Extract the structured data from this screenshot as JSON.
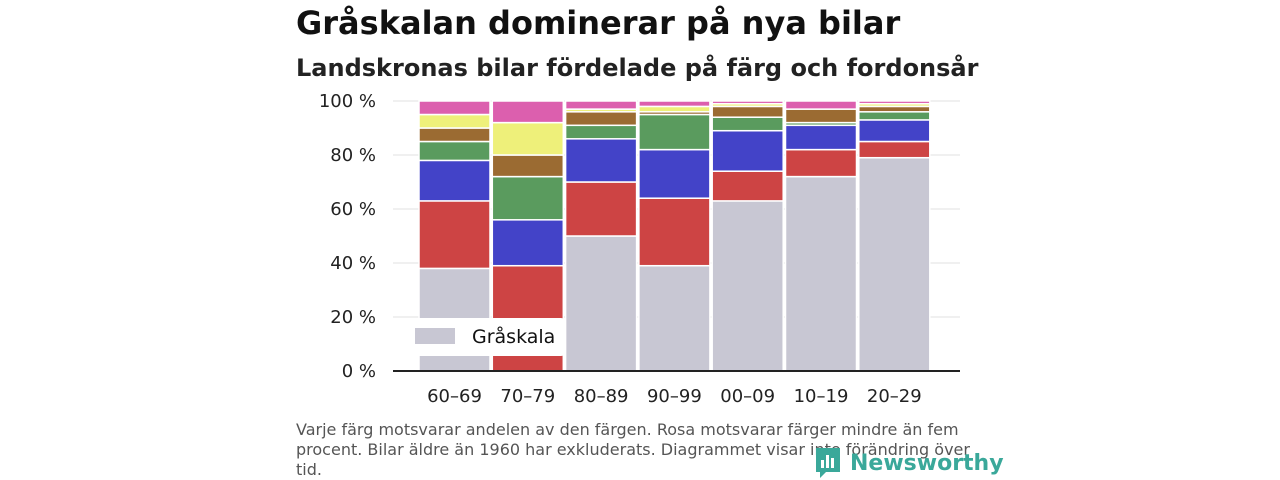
{
  "title": "Gråskalan dominerar på nya bilar",
  "subtitle": "Landskronas bilar fördelade på färg och fordonsår",
  "footnote": "Varje färg motsvarar andelen av den färgen. Rosa motsvarar färger mindre än fem procent. Bilar äldre än 1960 har exkluderats. Diagrammet visar inte förändring över tid.",
  "brand": {
    "name": "Newsworthy",
    "icon": "newsworthy-logo-icon",
    "color": "#3aa89a"
  },
  "chart_data": {
    "type": "bar",
    "stacked": true,
    "categories": [
      "60–69",
      "70–79",
      "80–89",
      "90–99",
      "00–09",
      "10–19",
      "20–29"
    ],
    "ylim": [
      0,
      100
    ],
    "yticks": [
      0,
      20,
      40,
      60,
      80,
      100
    ],
    "ytick_labels": [
      "0 %",
      "20 %",
      "40 %",
      "60 %",
      "80 %",
      "100 %"
    ],
    "grid": true,
    "legend": {
      "position": "bottom-left",
      "entries": [
        "Gråskala"
      ]
    },
    "series": [
      {
        "name": "Gråskala",
        "color": "#c8c7d3",
        "values": [
          38,
          0,
          50,
          39,
          63,
          72,
          79
        ]
      },
      {
        "color": "#cd4444",
        "values": [
          25,
          39,
          20,
          25,
          11,
          10,
          6
        ]
      },
      {
        "color": "#4343c8",
        "values": [
          15,
          17,
          16,
          18,
          15,
          9,
          8
        ]
      },
      {
        "color": "#5a9b5e",
        "values": [
          7,
          16,
          5,
          13,
          5,
          1,
          3
        ]
      },
      {
        "color": "#9b6b32",
        "values": [
          5,
          8,
          5,
          1,
          4,
          5,
          2
        ]
      },
      {
        "color": "#eef07a",
        "values": [
          5,
          12,
          1,
          2,
          1,
          0,
          1
        ]
      },
      {
        "color": "#dc5fae",
        "values": [
          5,
          8,
          3,
          2,
          1,
          3,
          1
        ]
      }
    ]
  }
}
